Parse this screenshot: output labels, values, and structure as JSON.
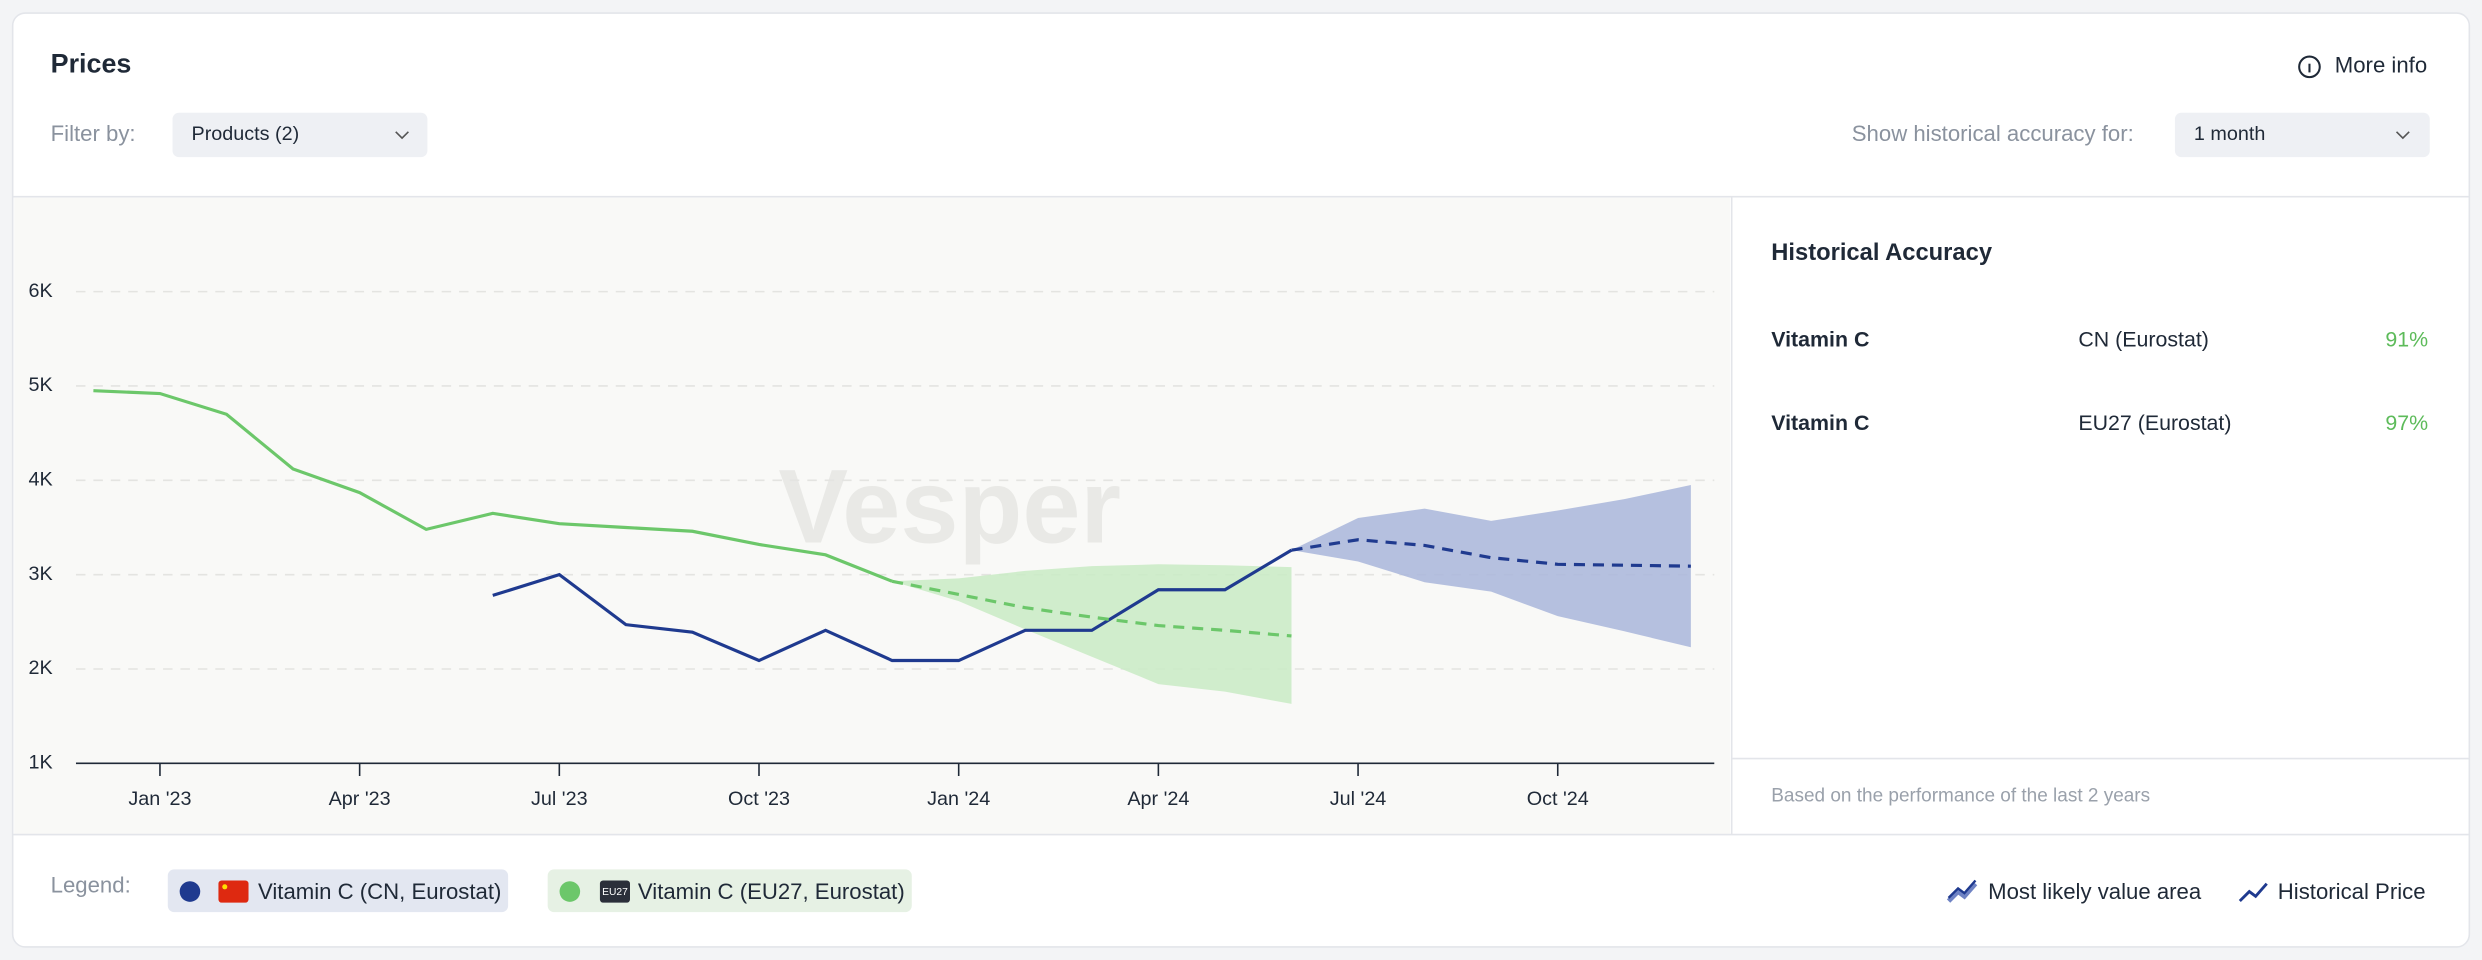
{
  "header": {
    "title": "Prices",
    "more_info": "More info"
  },
  "filters": {
    "filter_label": "Filter by:",
    "filter_value": "Products (2)",
    "accuracy_label": "Show historical accuracy for:",
    "accuracy_value": "1 month"
  },
  "chart_data": {
    "type": "line",
    "watermark": "Vesper",
    "categories": [
      null,
      "Jan '23",
      null,
      null,
      "Apr '23",
      null,
      null,
      "Jul '23",
      null,
      null,
      "Oct '23",
      null,
      null,
      "Jan '24",
      null,
      null,
      "Apr '24",
      null,
      null,
      "Jul '24",
      null,
      null,
      "Oct '24",
      null,
      null
    ],
    "ylim": [
      1000,
      7000
    ],
    "yticks": [
      {
        "value": 1000,
        "label": "1K"
      },
      {
        "value": 2000,
        "label": "2K"
      },
      {
        "value": 3000,
        "label": "3K"
      },
      {
        "value": 4000,
        "label": "4K"
      },
      {
        "value": 5000,
        "label": "5K"
      },
      {
        "value": 6000,
        "label": "6K"
      }
    ],
    "grid": true,
    "series": [
      {
        "name": "Vitamin C (CN, Eurostat)",
        "color": "#1f3a8f",
        "band_color": "#a9b6db",
        "values": [
          null,
          null,
          null,
          null,
          null,
          null,
          2780,
          3000,
          2470,
          2390,
          2090,
          2410,
          2090,
          2090,
          2410,
          2410,
          2840,
          2840,
          3260,
          null,
          null,
          null,
          null,
          null,
          null
        ],
        "forecast": [
          null,
          null,
          null,
          null,
          null,
          null,
          null,
          null,
          null,
          null,
          null,
          null,
          null,
          null,
          null,
          null,
          null,
          null,
          3260,
          3370,
          3310,
          3180,
          3110,
          3100,
          3090
        ],
        "upper": [
          null,
          null,
          null,
          null,
          null,
          null,
          null,
          null,
          null,
          null,
          null,
          null,
          null,
          null,
          null,
          null,
          null,
          null,
          3260,
          3600,
          3700,
          3570,
          3680,
          3800,
          3950
        ],
        "lower": [
          null,
          null,
          null,
          null,
          null,
          null,
          null,
          null,
          null,
          null,
          null,
          null,
          null,
          null,
          null,
          null,
          null,
          null,
          3260,
          3140,
          2920,
          2820,
          2560,
          2400,
          2230
        ]
      },
      {
        "name": "Vitamin C (EU27, Eurostat)",
        "badge": "EU27",
        "color": "#6cc76a",
        "band_color": "#c9ebc4",
        "values": [
          4950,
          4920,
          4700,
          4120,
          3870,
          3480,
          3650,
          3540,
          3500,
          3460,
          3320,
          3210,
          2930,
          null,
          null,
          null,
          null,
          null,
          null,
          null,
          null,
          null,
          null,
          null,
          null
        ],
        "forecast": [
          null,
          null,
          null,
          null,
          null,
          null,
          null,
          null,
          null,
          null,
          null,
          null,
          2930,
          2790,
          2650,
          2550,
          2460,
          2410,
          2350,
          null,
          null,
          null,
          null,
          null,
          null
        ],
        "upper": [
          null,
          null,
          null,
          null,
          null,
          null,
          null,
          null,
          null,
          null,
          null,
          null,
          2930,
          2960,
          3040,
          3090,
          3110,
          3100,
          3080,
          null,
          null,
          null,
          null,
          null,
          null
        ],
        "lower": [
          null,
          null,
          null,
          null,
          null,
          null,
          null,
          null,
          null,
          null,
          null,
          null,
          2930,
          2720,
          2420,
          2130,
          1840,
          1760,
          1630,
          null,
          null,
          null,
          null,
          null,
          null
        ]
      }
    ],
    "legend_label": "Legend:",
    "legend_keys": [
      "Most likely value area",
      "Historical Price"
    ]
  },
  "accuracy": {
    "title": "Historical Accuracy",
    "rows": [
      [
        "Vitamin C",
        "CN (Eurostat)",
        "91%"
      ],
      [
        "Vitamin C",
        "EU27 (Eurostat)",
        "97%"
      ]
    ],
    "footnote": "Based on the performance of the last 2 years"
  }
}
